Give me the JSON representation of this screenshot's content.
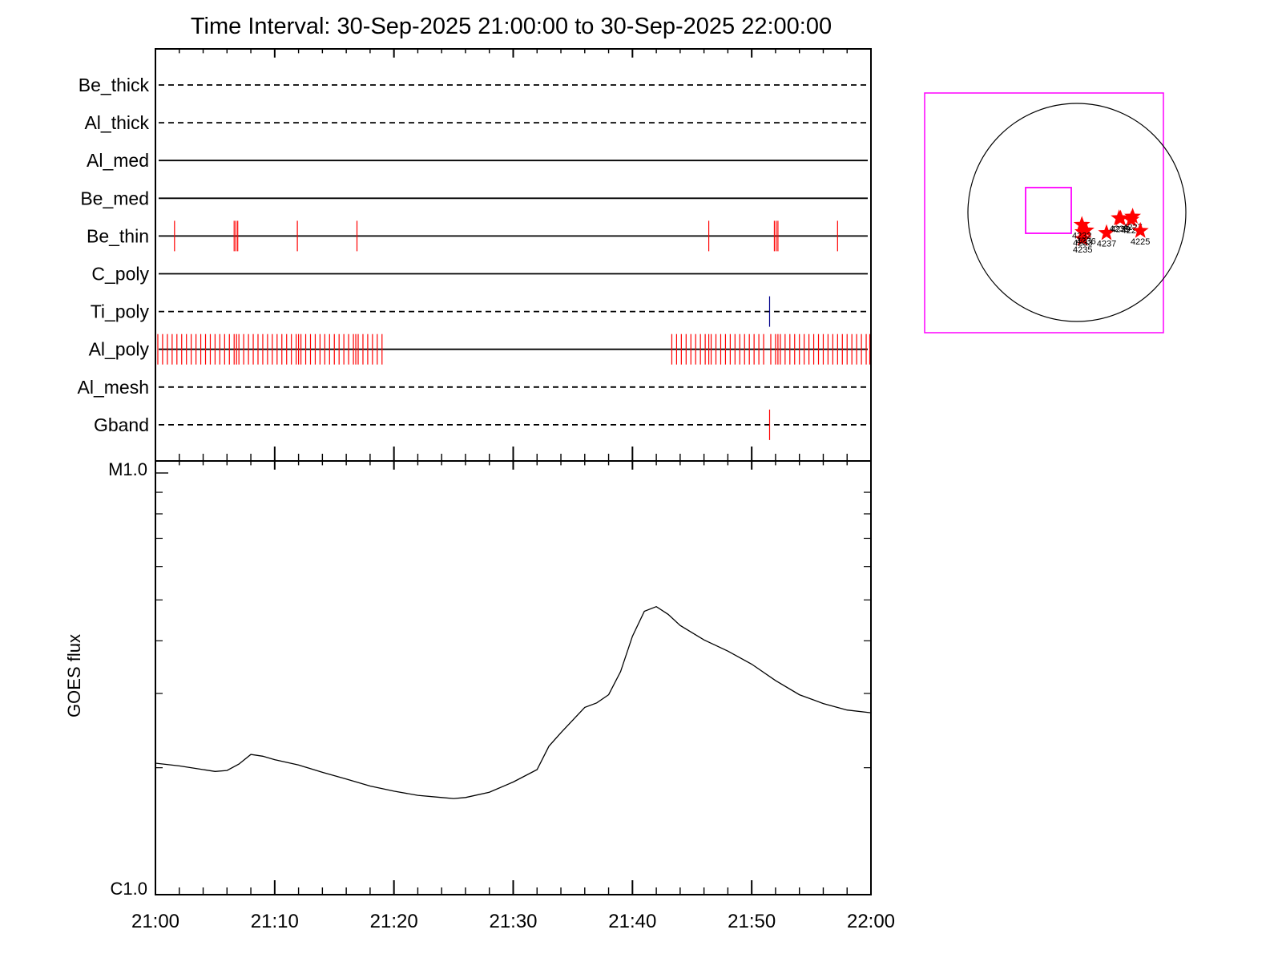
{
  "title": "Time Interval: 30-Sep-2025 21:00:00 to 30-Sep-2025 22:00:00",
  "colors": {
    "red": "#ff0000",
    "blue": "#00008b",
    "magenta": "#ff00ff",
    "black": "#000000"
  },
  "x_ticks": [
    "21:00",
    "21:10",
    "21:20",
    "21:30",
    "21:40",
    "21:50",
    "22:00"
  ],
  "ylabel": "GOES flux",
  "flux_ticks": [
    "M1.0",
    "C1.0"
  ],
  "chart_data": [
    {
      "type": "line",
      "name": "filter_timeline",
      "x_unit": "minutes after 21:00",
      "xlim": [
        0,
        60
      ],
      "rows": [
        {
          "label": "Be_thick",
          "style": "dashed",
          "events": [],
          "event_color": "#ff0000"
        },
        {
          "label": "Al_thick",
          "style": "dashed",
          "events": [],
          "event_color": "#ff0000"
        },
        {
          "label": "Al_med",
          "style": "solid",
          "events": [],
          "event_color": "#ff0000"
        },
        {
          "label": "Be_med",
          "style": "solid",
          "events": [],
          "event_color": "#ff0000"
        },
        {
          "label": "Be_thin",
          "style": "solid",
          "events": [
            1.6,
            6.6,
            6.75,
            6.9,
            11.9,
            16.9,
            46.4,
            51.9,
            52.05,
            52.2,
            57.2
          ],
          "event_color": "#ff0000"
        },
        {
          "label": "C_poly",
          "style": "solid",
          "events": [],
          "event_color": "#ff0000"
        },
        {
          "label": "Ti_poly",
          "style": "dashed",
          "events": [
            51.5
          ],
          "event_color": "#00008b"
        },
        {
          "label": "Al_poly",
          "style": "solid",
          "events": [
            0.2,
            0.6,
            1.0,
            1.4,
            1.8,
            2.2,
            2.6,
            3.0,
            3.4,
            3.8,
            4.2,
            4.6,
            5.0,
            5.4,
            5.8,
            6.2,
            6.6,
            6.8,
            7.0,
            7.4,
            7.8,
            8.2,
            8.6,
            9.0,
            9.4,
            9.8,
            10.2,
            10.6,
            11.0,
            11.4,
            11.8,
            12.0,
            12.2,
            12.6,
            13.0,
            13.4,
            13.8,
            14.2,
            14.6,
            15.0,
            15.4,
            15.8,
            16.2,
            16.6,
            16.8,
            17.0,
            17.4,
            17.8,
            18.2,
            18.6,
            19.0,
            43.3,
            43.7,
            44.1,
            44.5,
            44.9,
            45.3,
            45.7,
            46.1,
            46.4,
            46.6,
            47.0,
            47.4,
            47.8,
            48.2,
            48.6,
            49.0,
            49.4,
            49.8,
            50.2,
            50.6,
            51.0,
            51.6,
            52.0,
            52.2,
            52.4,
            52.8,
            53.2,
            53.6,
            54.0,
            54.4,
            54.8,
            55.2,
            55.6,
            56.0,
            56.4,
            56.8,
            57.2,
            57.6,
            58.0,
            58.4,
            58.8,
            59.2,
            59.6,
            59.9
          ],
          "event_color": "#ff0000"
        },
        {
          "label": "Al_mesh",
          "style": "dashed",
          "events": [],
          "event_color": "#ff0000"
        },
        {
          "label": "Gband",
          "style": "dashed",
          "events": [
            51.5
          ],
          "event_color": "#ff0000"
        }
      ]
    },
    {
      "type": "line",
      "name": "goes_flux",
      "x_unit": "minutes after 21:00",
      "xlim": [
        0,
        60
      ],
      "y_scale": "log",
      "ylim": [
        1e-06,
        1e-05
      ],
      "ylabel": "GOES flux",
      "series": [
        {
          "x": [
            0,
            2,
            4,
            5,
            6,
            7,
            8,
            9,
            10,
            12,
            14,
            16,
            18,
            20,
            22,
            24,
            25,
            26,
            28,
            30,
            32,
            33,
            34,
            36,
            37,
            38,
            39,
            40,
            41,
            42,
            43,
            44,
            46,
            48,
            50,
            52,
            54,
            56,
            58,
            60
          ],
          "y": [
            2.05e-06,
            2.02e-06,
            1.98e-06,
            1.96e-06,
            1.97e-06,
            2.04e-06,
            2.15e-06,
            2.13e-06,
            2.09e-06,
            2.03e-06,
            1.95e-06,
            1.88e-06,
            1.81e-06,
            1.76e-06,
            1.72e-06,
            1.7e-06,
            1.69e-06,
            1.7e-06,
            1.75e-06,
            1.85e-06,
            1.98e-06,
            2.25e-06,
            2.42e-06,
            2.78e-06,
            2.85e-06,
            2.98e-06,
            3.38e-06,
            4.1e-06,
            4.7e-06,
            4.82e-06,
            4.62e-06,
            4.35e-06,
            4.02e-06,
            3.78e-06,
            3.52e-06,
            3.22e-06,
            2.98e-06,
            2.84e-06,
            2.74e-06,
            2.7e-06
          ]
        }
      ]
    }
  ],
  "sun_map": {
    "regions": [
      {
        "label": "4235",
        "x": 51,
        "y": -233
      },
      {
        "label": "4233",
        "x": 52,
        "y": -172
      },
      {
        "label": "4236",
        "x": 81,
        "y": -158
      },
      {
        "label": "4232",
        "x": 44,
        "y": -109
      },
      {
        "label": "4237",
        "x": 261,
        "y": -181
      },
      {
        "label": "4238",
        "x": 372,
        "y": -50
      },
      {
        "label": "4239",
        "x": 385,
        "y": -54
      },
      {
        "label": "4224",
        "x": 478,
        "y": -64
      },
      {
        "label": "4227",
        "x": 491,
        "y": -36
      },
      {
        "label": "4225",
        "x": 559,
        "y": -162
      }
    ]
  }
}
